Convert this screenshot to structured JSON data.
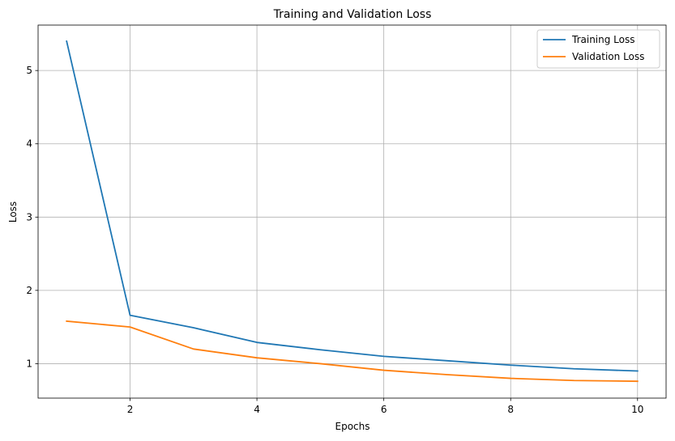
{
  "chart_data": {
    "type": "line",
    "title": "Training and Validation Loss",
    "xlabel": "Epochs",
    "ylabel": "Loss",
    "xlim": [
      0.55,
      10.45
    ],
    "ylim": [
      0.53,
      5.62
    ],
    "xticks": [
      2,
      4,
      6,
      8,
      10
    ],
    "yticks": [
      1,
      2,
      3,
      4,
      5
    ],
    "grid": true,
    "legend_position": "top-right",
    "x": [
      1,
      2,
      3,
      4,
      5,
      6,
      7,
      8,
      9,
      10
    ],
    "series": [
      {
        "name": "Training Loss",
        "color": "#1f77b4",
        "values": [
          5.4,
          1.66,
          1.49,
          1.29,
          1.19,
          1.1,
          1.04,
          0.98,
          0.93,
          0.9
        ]
      },
      {
        "name": "Validation Loss",
        "color": "#ff7f0e",
        "values": [
          1.58,
          1.5,
          1.2,
          1.08,
          1.0,
          0.91,
          0.85,
          0.8,
          0.77,
          0.76
        ]
      }
    ]
  }
}
